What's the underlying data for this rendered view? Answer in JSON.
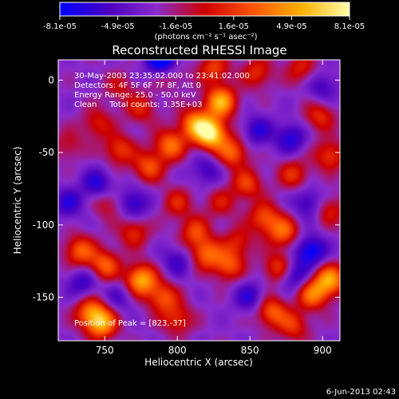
{
  "chart_data": {
    "type": "heatmap",
    "title": "Reconstructed RHESSI Image",
    "xlabel": "Heliocentric X (arcsec)",
    "ylabel": "Heliocentric Y (arcsec)",
    "xlim": [
      718,
      912
    ],
    "ylim": [
      -180,
      14
    ],
    "x_ticks": [
      750,
      800,
      850,
      900
    ],
    "y_ticks": [
      0,
      -50,
      -100,
      -150
    ],
    "colorbar": {
      "ticks": [
        "-8.1e-05",
        "-4.9e-05",
        "-1.6e-05",
        "1.6e-05",
        "4.9e-05",
        "8.1e-05"
      ],
      "unit_label": "(photons cm⁻² s⁻¹ asec⁻²)",
      "vmin": -8.1e-05,
      "vmax": 8.1e-05,
      "colors": [
        "#0000ff",
        "#4a00c0",
        "#8a2bcc",
        "#cc0000",
        "#ff5500",
        "#ffb000",
        "#ffffaa"
      ]
    },
    "annotations": [
      "30-May-2003 23:35:02.000 to 23:41:02.000",
      "Detectors: 4F 5F 6F 7F 8F, Att 0",
      "Energy Range: 25.0 - 50.0 keV",
      "Clean     Total counts: 3.35E+03"
    ],
    "peak_label": "Position of Peak = [823,-37]",
    "peak": [
      823,
      -37
    ],
    "blobs": [
      [
        823,
        -37,
        1.0
      ],
      [
        830,
        -15,
        0.8
      ],
      [
        812,
        -30,
        0.65
      ],
      [
        838,
        -50,
        0.55
      ],
      [
        795,
        -45,
        0.6
      ],
      [
        780,
        -60,
        0.5
      ],
      [
        760,
        -48,
        0.45
      ],
      [
        745,
        -30,
        0.35
      ],
      [
        848,
        -72,
        0.45
      ],
      [
        860,
        -95,
        0.5
      ],
      [
        873,
        -105,
        0.55
      ],
      [
        880,
        -65,
        0.4
      ],
      [
        898,
        -25,
        0.4
      ],
      [
        905,
        -52,
        0.45
      ],
      [
        885,
        8,
        0.35
      ],
      [
        855,
        5,
        0.4
      ],
      [
        825,
        8,
        0.45
      ],
      [
        795,
        5,
        0.3
      ],
      [
        775,
        -20,
        0.35
      ],
      [
        760,
        -5,
        0.25
      ],
      [
        733,
        -118,
        0.55
      ],
      [
        750,
        -128,
        0.55
      ],
      [
        770,
        -105,
        0.4
      ],
      [
        775,
        -138,
        0.8
      ],
      [
        790,
        -150,
        0.5
      ],
      [
        740,
        -160,
        0.55
      ],
      [
        748,
        -168,
        0.75
      ],
      [
        800,
        -165,
        0.4
      ],
      [
        812,
        -105,
        0.45
      ],
      [
        820,
        -120,
        0.55
      ],
      [
        835,
        -128,
        0.5
      ],
      [
        842,
        -112,
        0.35
      ],
      [
        870,
        -130,
        0.5
      ],
      [
        865,
        -160,
        0.55
      ],
      [
        893,
        -148,
        0.6
      ],
      [
        905,
        -138,
        0.75
      ],
      [
        905,
        -90,
        0.35
      ],
      [
        880,
        -170,
        0.4
      ],
      [
        725,
        -45,
        0.25
      ],
      [
        752,
        -85,
        0.3
      ],
      [
        800,
        -85,
        0.35
      ],
      [
        830,
        -85,
        0.3
      ]
    ],
    "dips": [
      [
        790,
        14,
        -0.8
      ],
      [
        745,
        -72,
        -0.4
      ],
      [
        770,
        -85,
        -0.4
      ],
      [
        820,
        -62,
        -0.3
      ],
      [
        855,
        -35,
        -0.35
      ],
      [
        878,
        -40,
        -0.4
      ],
      [
        900,
        -5,
        -0.3
      ],
      [
        892,
        -118,
        -0.55
      ],
      [
        880,
        -135,
        -0.45
      ],
      [
        735,
        -140,
        -0.35
      ],
      [
        800,
        -125,
        -0.3
      ],
      [
        850,
        -150,
        -0.35
      ],
      [
        725,
        -85,
        -0.35
      ],
      [
        760,
        -150,
        -0.25
      ],
      [
        890,
        -85,
        -0.35
      ]
    ]
  },
  "footer": {
    "date": "6-Jun-2013 02:43"
  }
}
